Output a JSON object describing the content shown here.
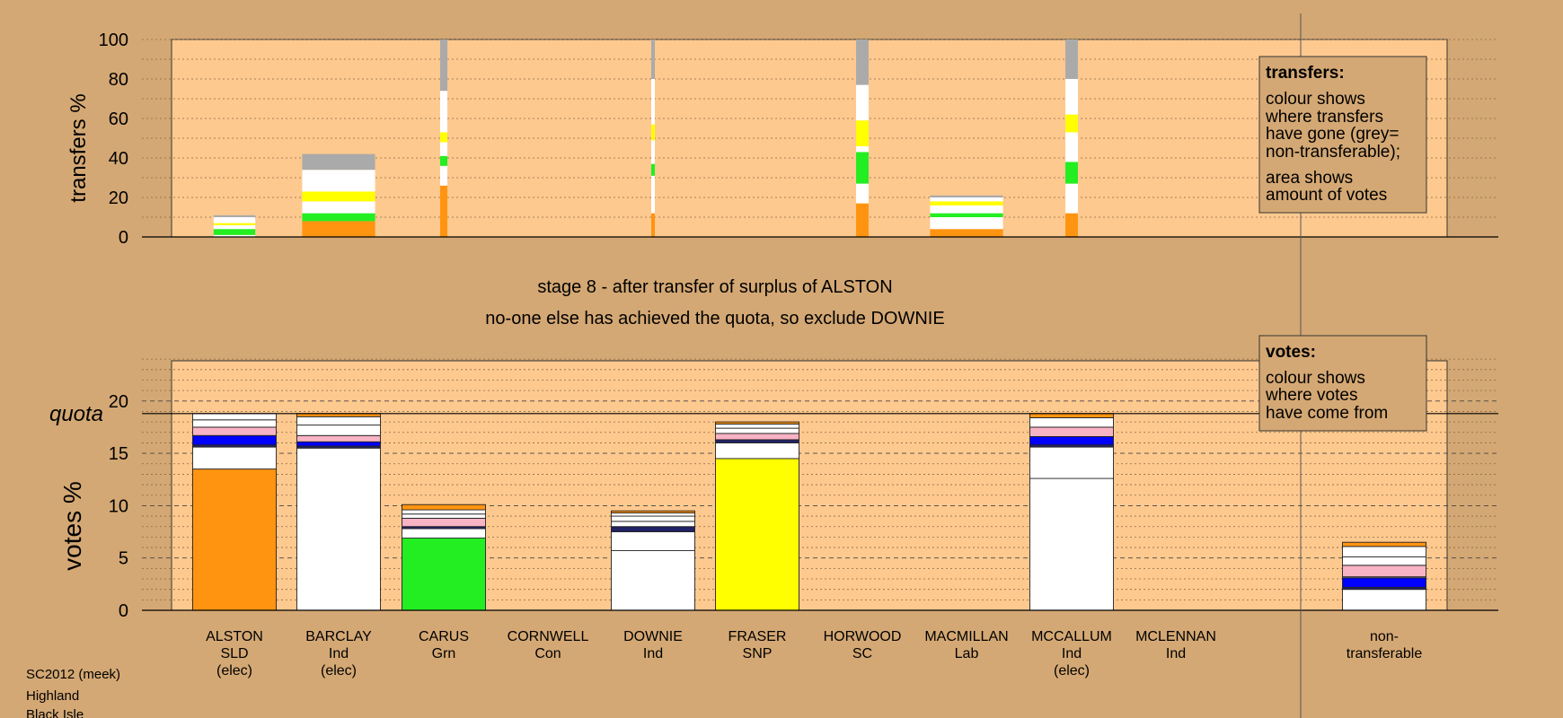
{
  "stage_title": "stage 8 - after transfer of surplus of ALSTON",
  "stage_subtitle": "no-one else has achieved the quota, so exclude DOWNIE",
  "footer": [
    "SC2012 (meek)",
    "Highland",
    "Black Isle"
  ],
  "quota_label": "quota",
  "legend_transfers": {
    "heading": "transfers:",
    "lines": [
      "colour shows",
      "where transfers",
      "have gone (grey=",
      "non-transferable);",
      "area shows",
      "amount of votes"
    ]
  },
  "legend_votes": {
    "heading": "votes:",
    "lines": [
      "colour shows",
      "where votes",
      "have come from"
    ]
  },
  "colors": {
    "background": "#d4a874",
    "plot": "#fec98f",
    "SLD": "#ff9411",
    "Ind": "#ffffff",
    "Grn": "#22ee22",
    "SNP": "#ffff00",
    "pink": "#f8b3c4",
    "blue": "#0000ff",
    "navy": "#222266",
    "nontransferable": "#aaaaaa"
  },
  "chart_data": [
    {
      "type": "bar",
      "name": "transfers",
      "ylabel": "transfers %",
      "ylim": [
        0,
        100
      ],
      "yticks": [
        0,
        20,
        40,
        60,
        80,
        100
      ],
      "columns": [
        {
          "width": 0.4,
          "segments": [
            {
              "color": "#ffffff",
              "h": 1
            },
            {
              "color": "#22ee22",
              "h": 3
            },
            {
              "color": "#ffffff",
              "h": 2
            },
            {
              "color": "#ffff00",
              "h": 1
            },
            {
              "color": "#ffffff",
              "h": 3
            },
            {
              "color": "#aaaaaa",
              "h": 1
            }
          ]
        },
        {
          "width": 0.7,
          "segments": [
            {
              "color": "#ff9411",
              "h": 8
            },
            {
              "color": "#22ee22",
              "h": 4
            },
            {
              "color": "#ffffff",
              "h": 6
            },
            {
              "color": "#ffff00",
              "h": 5
            },
            {
              "color": "#ffffff",
              "h": 11
            },
            {
              "color": "#aaaaaa",
              "h": 8
            }
          ]
        },
        {
          "width": 0.07,
          "segments": [
            {
              "color": "#ff9411",
              "h": 26
            },
            {
              "color": "#ffffff",
              "h": 10
            },
            {
              "color": "#22ee22",
              "h": 5
            },
            {
              "color": "#ffffff",
              "h": 7
            },
            {
              "color": "#ffff00",
              "h": 5
            },
            {
              "color": "#ffffff",
              "h": 21
            },
            {
              "color": "#aaaaaa",
              "h": 26
            }
          ]
        },
        {
          "width": 0,
          "segments": []
        },
        {
          "width": 0.03,
          "segments": [
            {
              "color": "#ff9411",
              "h": 12
            },
            {
              "color": "#ffffff",
              "h": 19
            },
            {
              "color": "#22ee22",
              "h": 6
            },
            {
              "color": "#ffffff",
              "h": 12
            },
            {
              "color": "#ffff00",
              "h": 8
            },
            {
              "color": "#ffffff",
              "h": 23
            },
            {
              "color": "#aaaaaa",
              "h": 20
            }
          ]
        },
        {
          "width": 0,
          "segments": []
        },
        {
          "width": 0.12,
          "segments": [
            {
              "color": "#ff9411",
              "h": 17
            },
            {
              "color": "#ffffff",
              "h": 10
            },
            {
              "color": "#22ee22",
              "h": 16
            },
            {
              "color": "#ffffff",
              "h": 3
            },
            {
              "color": "#ffff00",
              "h": 13
            },
            {
              "color": "#ffffff",
              "h": 18
            },
            {
              "color": "#aaaaaa",
              "h": 23
            }
          ]
        },
        {
          "width": 0.7,
          "segments": [
            {
              "color": "#ff9411",
              "h": 4
            },
            {
              "color": "#ffffff",
              "h": 6
            },
            {
              "color": "#22ee22",
              "h": 2
            },
            {
              "color": "#ffffff",
              "h": 4
            },
            {
              "color": "#ffff00",
              "h": 2
            },
            {
              "color": "#ffffff",
              "h": 2
            },
            {
              "color": "#aaaaaa",
              "h": 1
            }
          ]
        },
        {
          "width": 0.12,
          "segments": [
            {
              "color": "#ff9411",
              "h": 12
            },
            {
              "color": "#ffffff",
              "h": 15
            },
            {
              "color": "#22ee22",
              "h": 11
            },
            {
              "color": "#ffffff",
              "h": 15
            },
            {
              "color": "#ffff00",
              "h": 9
            },
            {
              "color": "#ffffff",
              "h": 18
            },
            {
              "color": "#aaaaaa",
              "h": 20
            }
          ]
        }
      ]
    },
    {
      "type": "bar",
      "name": "votes",
      "ylabel": "votes %",
      "ylim": [
        0,
        24
      ],
      "yticks": [
        0,
        5,
        10,
        15,
        20
      ],
      "quota": 18.8,
      "categories": [
        [
          "ALSTON",
          "SLD",
          "(elec)"
        ],
        [
          "BARCLAY",
          "Ind",
          "(elec)"
        ],
        [
          "CARUS",
          "Grn"
        ],
        [
          "CORNWELL",
          "Con"
        ],
        [
          "DOWNIE",
          "Ind"
        ],
        [
          "FRASER",
          "SNP"
        ],
        [
          "HORWOOD",
          "SC"
        ],
        [
          "MACMILLAN",
          "Lab"
        ],
        [
          "MCCALLUM",
          "Ind",
          "(elec)"
        ],
        [
          "MCLENNAN",
          "Ind"
        ],
        [
          "non-",
          "transferable"
        ]
      ],
      "stacks": [
        [
          {
            "color": "#ff9411",
            "v": 13.5
          },
          {
            "color": "#ffffff",
            "v": 2.1
          },
          {
            "color": "#222266",
            "v": 0.2
          },
          {
            "color": "#0000ff",
            "v": 0.9
          },
          {
            "color": "#f8b3c4",
            "v": 0.8
          },
          {
            "color": "#ffffff",
            "v": 0.7
          },
          {
            "color": "#ffffff",
            "v": 0.6
          }
        ],
        [
          {
            "color": "#ffffff",
            "v": 15.5
          },
          {
            "color": "#222266",
            "v": 0.2
          },
          {
            "color": "#0000ff",
            "v": 0.4
          },
          {
            "color": "#f8b3c4",
            "v": 0.6
          },
          {
            "color": "#ffffff",
            "v": 1.0
          },
          {
            "color": "#ffffff",
            "v": 0.8
          },
          {
            "color": "#ff9411",
            "v": 0.3
          }
        ],
        [
          {
            "color": "#22ee22",
            "v": 6.9
          },
          {
            "color": "#ffffff",
            "v": 0.9
          },
          {
            "color": "#222266",
            "v": 0.2
          },
          {
            "color": "#f8b3c4",
            "v": 0.8
          },
          {
            "color": "#ffffff",
            "v": 0.4
          },
          {
            "color": "#ffffff",
            "v": 0.4
          },
          {
            "color": "#ff9411",
            "v": 0.5
          }
        ],
        [],
        [
          {
            "color": "#ffffff",
            "v": 5.7
          },
          {
            "color": "#ffffff",
            "v": 1.8
          },
          {
            "color": "#222266",
            "v": 0.5
          },
          {
            "color": "#ffffff",
            "v": 0.5
          },
          {
            "color": "#ffffff",
            "v": 0.5
          },
          {
            "color": "#ffffff",
            "v": 0.3
          },
          {
            "color": "#ff9411",
            "v": 0.2
          }
        ],
        [
          {
            "color": "#ffff00",
            "v": 14.5
          },
          {
            "color": "#ffffff",
            "v": 1.5
          },
          {
            "color": "#222266",
            "v": 0.3
          },
          {
            "color": "#f8b3c4",
            "v": 0.6
          },
          {
            "color": "#ffffff",
            "v": 0.5
          },
          {
            "color": "#ffffff",
            "v": 0.4
          },
          {
            "color": "#ff9411",
            "v": 0.2
          }
        ],
        [],
        [],
        [
          {
            "color": "#ffffff",
            "v": 12.6
          },
          {
            "color": "#ffffff",
            "v": 3.0
          },
          {
            "color": "#222266",
            "v": 0.2
          },
          {
            "color": "#0000ff",
            "v": 0.8
          },
          {
            "color": "#f8b3c4",
            "v": 0.9
          },
          {
            "color": "#ffffff",
            "v": 0.9
          },
          {
            "color": "#ff9411",
            "v": 0.4
          }
        ],
        [],
        [
          {
            "color": "#ffffff",
            "v": 2.0
          },
          {
            "color": "#222266",
            "v": 0.2
          },
          {
            "color": "#0000ff",
            "v": 0.9
          },
          {
            "color": "#ffffff",
            "v": 0.1
          },
          {
            "color": "#f8b3c4",
            "v": 1.1
          },
          {
            "color": "#ffffff",
            "v": 0.8
          },
          {
            "color": "#ffffff",
            "v": 1.0
          },
          {
            "color": "#ff9411",
            "v": 0.4
          }
        ]
      ]
    }
  ]
}
